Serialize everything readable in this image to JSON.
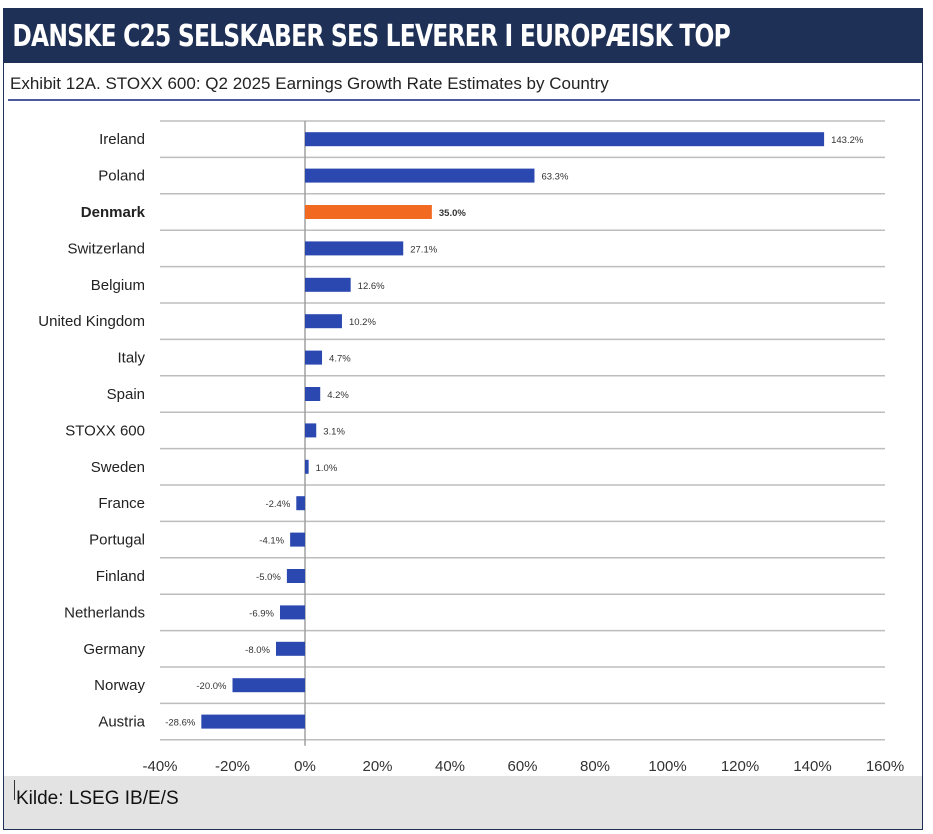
{
  "header": {
    "title": "DANSKE C25 SELSKABER SES LEVERER I EUROPÆISK TOP"
  },
  "footer": {
    "source": "Kilde: LSEG IB/E/S"
  },
  "chart_data": {
    "type": "bar",
    "orientation": "horizontal",
    "title": "Exhibit 12A.  STOXX 600: Q2 2025 Earnings Growth Rate Estimates by Country",
    "categories": [
      "Ireland",
      "Poland",
      "Denmark",
      "Switzerland",
      "Belgium",
      "United Kingdom",
      "Italy",
      "Spain",
      "STOXX 600",
      "Sweden",
      "France",
      "Portugal",
      "Finland",
      "Netherlands",
      "Germany",
      "Norway",
      "Austria"
    ],
    "values": [
      143.2,
      63.3,
      35.0,
      27.1,
      12.6,
      10.2,
      4.7,
      4.2,
      3.1,
      1.0,
      -2.4,
      -4.1,
      -5.0,
      -6.9,
      -8.0,
      -20.0,
      -28.6
    ],
    "labels": [
      "143.2%",
      "63.3%",
      "35.0%",
      "27.1%",
      "12.6%",
      "10.2%",
      "4.7%",
      "4.2%",
      "3.1%",
      "1.0%",
      "-2.4%",
      "-4.1%",
      "-5.0%",
      "-6.9%",
      "-8.0%",
      "-20.0%",
      "-28.6%"
    ],
    "highlight": "Denmark",
    "xlim": [
      -40,
      160
    ],
    "xticks": [
      "-40%",
      "-20%",
      "0%",
      "20%",
      "40%",
      "60%",
      "80%",
      "100%",
      "120%",
      "140%",
      "160%"
    ],
    "xlabel": "",
    "ylabel": "",
    "grid": true,
    "colors": {
      "default": "#2a48b0",
      "highlight": "#f26a21"
    }
  }
}
